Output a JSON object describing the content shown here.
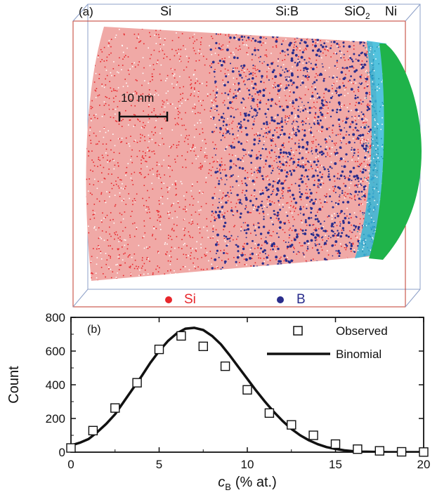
{
  "panel_a": {
    "panel_label": "(a)",
    "region_labels": [
      "Si",
      "Si:B",
      "SiO",
      "2",
      "Ni"
    ],
    "scale_bar": "10 nm",
    "legend": [
      {
        "label": "Si",
        "color": "#e8262b"
      },
      {
        "label": "B",
        "color": "#2a2d8c"
      }
    ],
    "colors": {
      "si": "#e8262b",
      "b": "#2a2d8c",
      "sio2": "#35b8d8",
      "ni": "#1fb34a",
      "box": "#c0392b"
    }
  },
  "chart_data": {
    "type": "scatter",
    "panel_label": "(b)",
    "xlabel": "c",
    "xlabel_sub": "B",
    "xlabel_unit": "(% at.)",
    "ylabel": "Count",
    "xlim": [
      0,
      20
    ],
    "ylim": [
      0,
      800
    ],
    "xticks": [
      0,
      5,
      10,
      15,
      20
    ],
    "yticks": [
      0,
      200,
      400,
      600,
      800
    ],
    "grid": false,
    "legend_position": "top-right",
    "series": [
      {
        "name": "Observed",
        "marker": "open-square",
        "x": [
          0.0,
          1.25,
          2.5,
          3.75,
          5.0,
          6.25,
          7.5,
          8.75,
          10.0,
          11.25,
          12.5,
          13.75,
          15.0,
          16.25,
          17.5,
          18.75,
          20.0
        ],
        "values": [
          25,
          128,
          262,
          412,
          610,
          690,
          628,
          510,
          370,
          232,
          162,
          100,
          48,
          18,
          8,
          2,
          1
        ]
      },
      {
        "name": "Binomial",
        "style": "line",
        "x": [
          0,
          0.5,
          1,
          1.5,
          2,
          2.5,
          3,
          3.5,
          4,
          4.5,
          5,
          5.5,
          6,
          6.5,
          7,
          7.5,
          8,
          8.5,
          9,
          9.5,
          10,
          10.5,
          11,
          11.5,
          12,
          12.5,
          13,
          13.5,
          14,
          14.5,
          15,
          15.5,
          16,
          16.5,
          17,
          17.5,
          18,
          18.5,
          19,
          19.5,
          20
        ],
        "values": [
          40,
          56,
          78,
          120,
          168,
          225,
          300,
          375,
          450,
          530,
          600,
          660,
          705,
          733,
          738,
          725,
          690,
          640,
          575,
          505,
          435,
          365,
          300,
          240,
          185,
          138,
          100,
          70,
          47,
          30,
          19,
          11,
          6,
          3,
          2,
          1,
          0,
          0,
          0,
          0,
          0
        ]
      }
    ]
  }
}
